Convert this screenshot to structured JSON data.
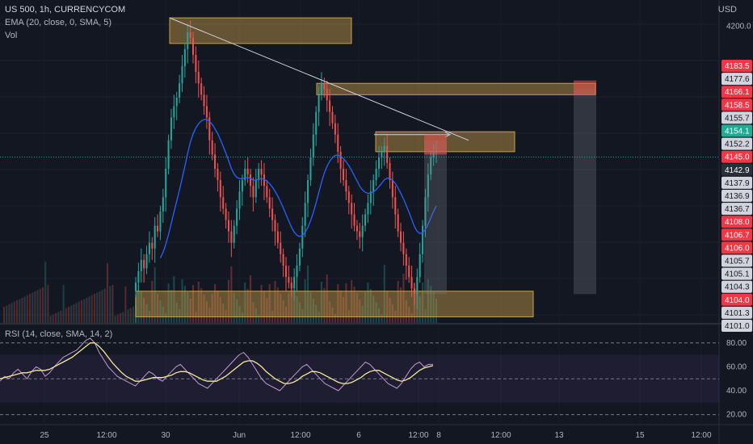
{
  "header": {
    "symbol_line": "US 500, 1h, CURRENCYCOM",
    "ema_line": "EMA (20, close, 0, SMA, 5)",
    "vol_line": "Vol",
    "rsi_line": "RSI (14, close, SMA, 14, 2)",
    "currency": "USD"
  },
  "colors": {
    "background": "#131722",
    "up": "#26a69a",
    "down": "#ef5350",
    "ema": "#2962ff",
    "zone": "#c8a04a",
    "rsi": "#c09bd0",
    "rsi_ma": "#f5eb9a",
    "badge_red": "#f23645",
    "badge_grey": "#d1d4dc",
    "badge_dark": "#2a2e39",
    "badge_teal": "#22ab94"
  },
  "chart_data": [
    {
      "type": "candlestick",
      "price_ticks": [
        4200.0
      ],
      "price_labels": [
        {
          "text": "4183.5",
          "style": "red"
        },
        {
          "text": "4177.6",
          "style": "grey"
        },
        {
          "text": "4166.1",
          "style": "red"
        },
        {
          "text": "4158.5",
          "style": "red"
        },
        {
          "text": "4155.7",
          "style": "grey"
        },
        {
          "text": "4154.1",
          "style": "teal"
        },
        {
          "text": "4152.2",
          "style": "grey"
        },
        {
          "text": "4145.0",
          "style": "red"
        },
        {
          "text": "4142.9",
          "style": "dark"
        },
        {
          "text": "4137.9",
          "style": "grey"
        },
        {
          "text": "4136.9",
          "style": "grey"
        },
        {
          "text": "4136.7",
          "style": "grey"
        },
        {
          "text": "4108.0",
          "style": "red"
        },
        {
          "text": "4106.7",
          "style": "red"
        },
        {
          "text": "4106.0",
          "style": "red"
        },
        {
          "text": "4105.7",
          "style": "grey"
        },
        {
          "text": "4105.1",
          "style": "grey"
        },
        {
          "text": "4104.3",
          "style": "grey"
        },
        {
          "text": "4104.0",
          "style": "red"
        },
        {
          "text": "4101.3",
          "style": "grey"
        },
        {
          "text": "4101.0",
          "style": "grey"
        }
      ],
      "x_ticks": [
        "25",
        "12:00",
        "30",
        "Jun",
        "12:00",
        "6",
        "12:00",
        "8",
        "12:00",
        "13",
        "15",
        "12:00"
      ],
      "close": [
        4110,
        4114,
        4118,
        4115,
        4120,
        4124,
        4122,
        4130,
        4128,
        4135,
        4140,
        4150,
        4160,
        4168,
        4172,
        4175,
        4180,
        4186,
        4192,
        4198,
        4196,
        4190,
        4184,
        4180,
        4176,
        4172,
        4168,
        4160,
        4155,
        4150,
        4146,
        4140,
        4136,
        4132,
        4128,
        4124,
        4130,
        4136,
        4142,
        4146,
        4150,
        4148,
        4144,
        4140,
        4146,
        4150,
        4148,
        4144,
        4140,
        4136,
        4132,
        4128,
        4124,
        4120,
        4116,
        4112,
        4110,
        4108,
        4112,
        4116,
        4122,
        4130,
        4138,
        4146,
        4154,
        4162,
        4170,
        4176,
        4180,
        4178,
        4174,
        4170,
        4166,
        4162,
        4156,
        4150,
        4146,
        4142,
        4138,
        4134,
        4130,
        4128,
        4126,
        4130,
        4134,
        4138,
        4142,
        4146,
        4150,
        4154,
        4156,
        4158,
        4152,
        4146,
        4140,
        4134,
        4128,
        4124,
        4120,
        4116,
        4112,
        4108,
        4106,
        4112,
        4120,
        4130,
        4140,
        4148,
        4154,
        4156,
        4156
      ],
      "ema_label": "EMA (20, close, 0, SMA, 5)",
      "zones": [
        {
          "from_date": "30",
          "price_top": 4203,
          "price_bottom": 4194
        },
        {
          "from_date": "Jun",
          "price_top": 4180,
          "price_bottom": 4176
        },
        {
          "from_date": "6",
          "price_top": 4163,
          "price_bottom": 4156
        },
        {
          "from_date": "30",
          "price_top": 4107,
          "price_bottom": 4098
        }
      ]
    },
    {
      "type": "line",
      "title": "RSI (14, close, SMA, 14, 2)",
      "y_ticks": [
        "80.00",
        "60.00",
        "40.00",
        "20.00"
      ],
      "ylim": [
        15,
        90
      ],
      "band": [
        30,
        70
      ],
      "rsi": [
        48,
        52,
        50,
        55,
        58,
        54,
        50,
        56,
        60,
        58,
        52,
        55,
        60,
        64,
        68,
        70,
        72,
        74,
        78,
        82,
        84,
        80,
        72,
        66,
        60,
        56,
        52,
        50,
        48,
        46,
        44,
        48,
        52,
        56,
        54,
        50,
        48,
        52,
        56,
        60,
        62,
        58,
        54,
        50,
        46,
        44,
        42,
        46,
        50,
        54,
        58,
        62,
        66,
        70,
        72,
        68,
        62,
        56,
        50,
        46,
        44,
        42,
        40,
        44,
        48,
        52,
        56,
        60,
        62,
        58,
        54,
        50,
        46,
        44,
        42,
        40,
        44,
        48,
        52,
        56,
        60,
        64,
        62,
        58,
        54,
        50,
        46,
        44,
        42,
        46,
        52,
        58,
        62,
        64,
        60,
        62,
        62
      ],
      "rsi_ma": [
        50,
        51,
        52,
        53,
        54,
        55,
        55,
        56,
        57,
        57,
        57,
        58,
        60,
        62,
        64,
        66,
        68,
        71,
        74,
        77,
        80,
        80,
        77,
        73,
        68,
        63,
        59,
        55,
        52,
        50,
        48,
        48,
        49,
        50,
        51,
        51,
        51,
        52,
        53,
        55,
        56,
        56,
        55,
        53,
        51,
        49,
        48,
        48,
        48,
        50,
        52,
        55,
        58,
        61,
        64,
        65,
        65,
        63,
        60,
        56,
        53,
        50,
        48,
        46,
        46,
        47,
        49,
        52,
        54,
        56,
        56,
        55,
        53,
        51,
        49,
        47,
        46,
        46,
        47,
        49,
        51,
        54,
        56,
        57,
        57,
        55,
        53,
        51,
        49,
        48,
        49,
        51,
        54,
        57,
        59,
        60,
        61
      ]
    }
  ]
}
